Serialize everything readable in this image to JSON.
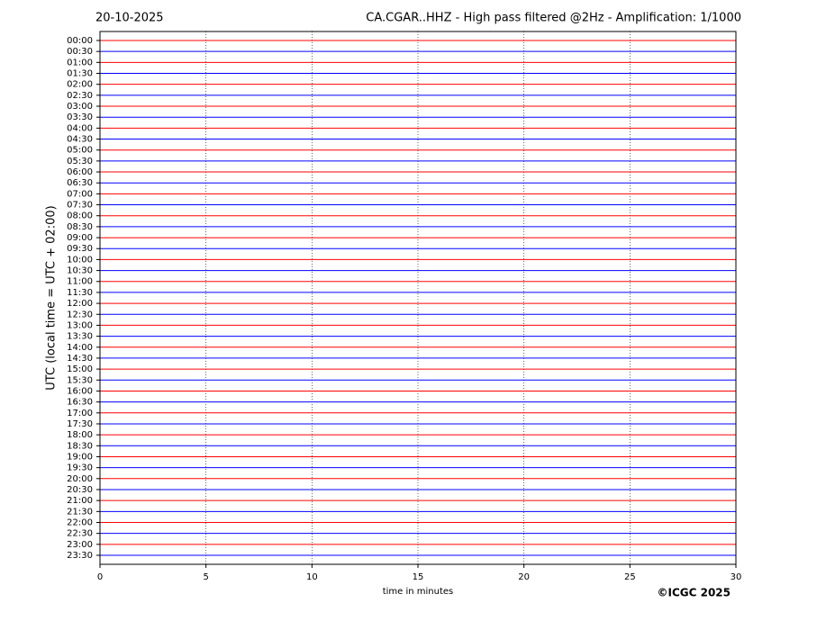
{
  "chart_data": {
    "type": "helicorder",
    "date_label": "20-10-2025",
    "title": "CA.CGAR..HHZ - High pass filtered @2Hz - Amplification: 1/1000",
    "ylabel": "UTC (local time = UTC + 02:00)",
    "xlabel": "time in minutes",
    "footer": "©ICGC 2025",
    "categories": [
      "00:00",
      "00:30",
      "01:00",
      "01:30",
      "02:00",
      "02:30",
      "03:00",
      "03:30",
      "04:00",
      "04:30",
      "05:00",
      "05:30",
      "06:00",
      "06:30",
      "07:00",
      "07:30",
      "08:00",
      "08:30",
      "09:00",
      "09:30",
      "10:00",
      "10:30",
      "11:00",
      "11:30",
      "12:00",
      "12:30",
      "13:00",
      "13:30",
      "14:00",
      "14:30",
      "15:00",
      "15:30",
      "16:00",
      "16:30",
      "17:00",
      "17:30",
      "18:00",
      "18:30",
      "19:00",
      "19:30",
      "20:00",
      "20:30",
      "21:00",
      "21:30",
      "22:00",
      "22:30",
      "23:00",
      "23:30"
    ],
    "xlim": [
      0,
      30
    ],
    "xticks": [
      0,
      5,
      10,
      15,
      20,
      25,
      30
    ],
    "grid": true,
    "colors": [
      "#ff0000",
      "#0000ff"
    ]
  }
}
